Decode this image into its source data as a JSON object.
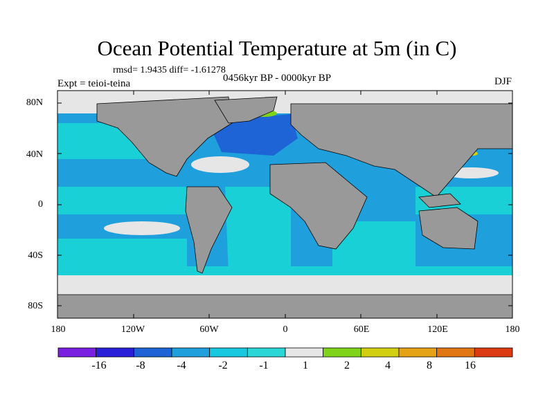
{
  "title": "Ocean Potential Temperature at 5m (in C)",
  "stats": "rmsd= 1.9435 diff= -1.61278",
  "period": "0456kyr BP - 0000kyr BP",
  "experiment": "Expt = teioi-teina",
  "season": "DJF",
  "lat_labels": [
    "80N",
    "40N",
    "0",
    "40S",
    "80S"
  ],
  "lon_labels": [
    "180",
    "120W",
    "60W",
    "0",
    "60E",
    "120E",
    "180"
  ],
  "colorbar": {
    "labels": [
      "-16",
      "-8",
      "-4",
      "-2",
      "-1",
      "1",
      "2",
      "4",
      "8",
      "16"
    ],
    "colors": [
      "#7a1fe0",
      "#2a1fd8",
      "#1f64d6",
      "#1fa0dd",
      "#18c8e0",
      "#2ad6d6",
      "#e6e6e6",
      "#7fd41a",
      "#d2cf10",
      "#e6a216",
      "#e07712",
      "#dc3a10"
    ]
  },
  "map_colors": {
    "land": "#999999",
    "near_zero": "#e6e6e6",
    "light_cool": "#18d0d6",
    "moderate_cool": "#1fa0dd",
    "strong_cool": "#1f64d6",
    "warm": "#7fd41a",
    "hot": "#d2cf10"
  }
}
